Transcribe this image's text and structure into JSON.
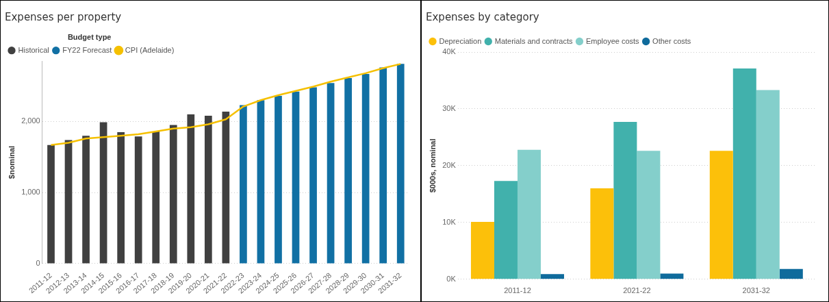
{
  "chart_data": [
    {
      "type": "bar",
      "title": "Expenses per property",
      "ylabel": "$nominal",
      "legend_title": "Budget type",
      "legend": "top left",
      "grid": "y",
      "marker": "none",
      "ylim": [
        0,
        2850
      ],
      "categories": [
        "2011-12",
        "2012-13",
        "2013-14",
        "2014-15",
        "2015-16",
        "2016-17",
        "2017-18",
        "2018-19",
        "2019-20",
        "2020-21",
        "2021-22",
        "2022-23",
        "2023-24",
        "2024-25",
        "2025-26",
        "2026-27",
        "2027-28",
        "2028-29",
        "2029-30",
        "2030-31",
        "2031-32"
      ],
      "yticks": [
        0,
        {
          "value": 1000,
          "label": "1,000"
        },
        {
          "value": 2000,
          "label": "2,000"
        }
      ],
      "series": [
        {
          "name": "Historical",
          "color": "#404040",
          "values": [
            1670,
            1740,
            1800,
            1990,
            1850,
            1790,
            1860,
            1950,
            2100,
            2080,
            2140,
            null,
            null,
            null,
            null,
            null,
            null,
            null,
            null,
            null,
            null
          ]
        },
        {
          "name": "FY22 Forecast",
          "color": "#1170a4",
          "values": [
            null,
            null,
            null,
            null,
            null,
            null,
            null,
            null,
            null,
            null,
            null,
            2230,
            2300,
            2360,
            2420,
            2480,
            2540,
            2610,
            2670,
            2760,
            2810
          ]
        },
        {
          "name": "CPI (Adelaide)",
          "type": "line",
          "color": "#f5c000",
          "values": [
            1670,
            1700,
            1760,
            1780,
            1800,
            1820,
            1860,
            1900,
            1920,
            1960,
            2030,
            2210,
            2300,
            2370,
            2430,
            2490,
            2560,
            2620,
            2680,
            2750,
            2810
          ]
        }
      ]
    },
    {
      "type": "bar",
      "title": "Expenses by category",
      "ylabel": "$000s, nominal",
      "legend": "top left",
      "grid": "y",
      "categories": [
        "2011-12",
        "2021-22",
        "2031-32"
      ],
      "ylim": [
        0,
        40000
      ],
      "yticks": [
        {
          "value": 0,
          "label": "0K"
        },
        {
          "value": 10000,
          "label": "10K"
        },
        {
          "value": 20000,
          "label": "20K"
        },
        {
          "value": 30000,
          "label": "30K"
        },
        {
          "value": 40000,
          "label": "40K"
        }
      ],
      "series": [
        {
          "name": "Depreciation",
          "color": "#fcc00a",
          "values": [
            10100,
            16000,
            22600
          ]
        },
        {
          "name": "Materials and contracts",
          "color": "#41b1ac",
          "values": [
            17300,
            27700,
            37100
          ]
        },
        {
          "name": "Employee costs",
          "color": "#84cfcb",
          "values": [
            22800,
            22600,
            33300
          ]
        },
        {
          "name": "Other costs",
          "color": "#0f6b9c",
          "values": [
            900,
            1000,
            1800
          ]
        }
      ]
    }
  ]
}
